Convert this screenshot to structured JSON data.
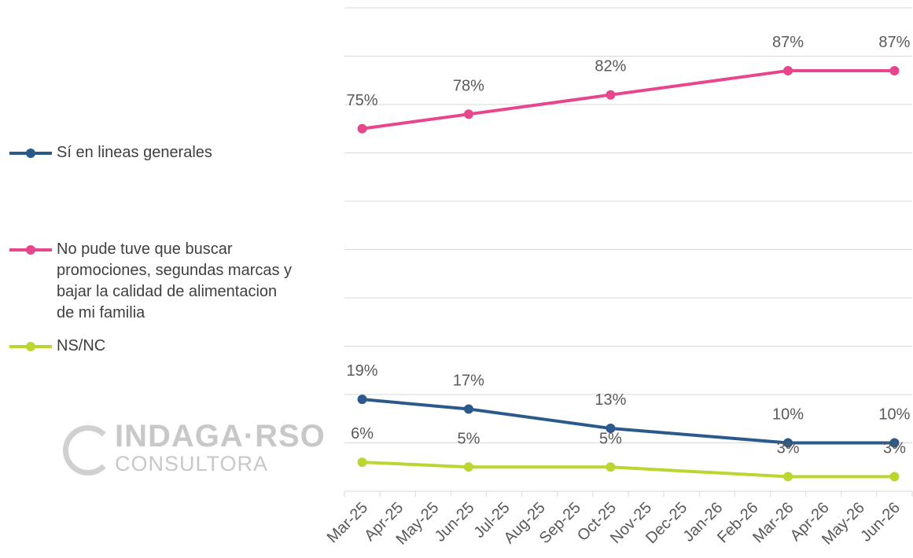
{
  "chart_data": {
    "type": "line",
    "categories": [
      "Mar-25",
      "Apr-25",
      "May-25",
      "Jun-25",
      "Jul-25",
      "Aug-25",
      "Sep-25",
      "Oct-25",
      "Nov-25",
      "Dec-25",
      "Jan-26",
      "Feb-26",
      "Mar-26",
      "Apr-26",
      "May-26",
      "Jun-26"
    ],
    "x": [
      "Mar-25",
      "Jun-25",
      "Oct-25",
      "Mar-26",
      "Jun-26"
    ],
    "series": [
      {
        "name": "Sí en lineas generales",
        "color": "#2a5a8c",
        "values": [
          19,
          17,
          13,
          10,
          10
        ],
        "value_labels": [
          "19%",
          "17%",
          "13%",
          "10%",
          "10%"
        ]
      },
      {
        "name": "No pude tuve que buscar promociones, segundas marcas y bajar la calidad de alimentacion de mi familia",
        "color": "#e8468c",
        "values": [
          75,
          78,
          82,
          87,
          87
        ],
        "value_labels": [
          "75%",
          "78%",
          "82%",
          "87%",
          "87%"
        ]
      },
      {
        "name": "NS/NC",
        "color": "#bcd631",
        "values": [
          6,
          5,
          5,
          3,
          3
        ],
        "value_labels": [
          "6%",
          "5%",
          "5%",
          "3%",
          "3%"
        ]
      }
    ],
    "ylim": [
      0,
      100
    ],
    "yticks": [
      0,
      10,
      20,
      30,
      40,
      50,
      60,
      70,
      80,
      90,
      100
    ],
    "grid": true,
    "legend": "left"
  },
  "logo": {
    "name": "INDAGA·RSO",
    "subtitle": "CONSULTORA"
  }
}
